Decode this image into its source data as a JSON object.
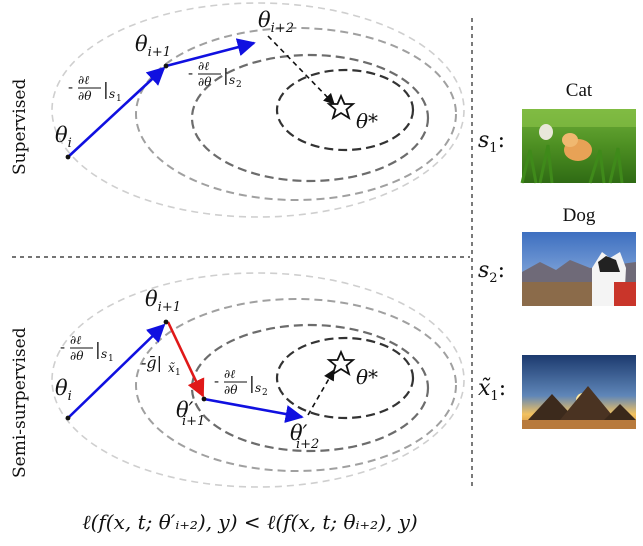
{
  "panels": {
    "supervised": {
      "title": "Supervised",
      "theta_i": "θ",
      "theta_i_sub": "i",
      "theta_i1": "θ",
      "theta_i1_sub": "i+1",
      "theta_i2": "θ",
      "theta_i2_sub": "i+2",
      "theta_star": "θ*",
      "grad_s1_sub": "s",
      "grad_s1_subsub": "1",
      "grad_s2_sub": "s",
      "grad_s2_subsub": "2"
    },
    "semi_supervised": {
      "title": "Semi-surpervised",
      "theta_i": "θ",
      "theta_i_sub": "i",
      "theta_i1": "θ",
      "theta_i1_sub": "i+1",
      "theta_prime_i1": "θ′",
      "theta_prime_i1_sub": "i+1",
      "theta_prime_i2": "θ′",
      "theta_prime_i2_sub": "i+2",
      "theta_star": "θ*",
      "grad_s1_sub": "s",
      "grad_s1_subsub": "1",
      "grad_s2_sub": "s",
      "grad_s2_subsub": "2",
      "g_label": "-ḡ|",
      "g_sub": "x̃",
      "g_subsub": "1"
    }
  },
  "gradient": {
    "minus": "-",
    "numerator": "∂ℓ",
    "denominator": "∂θ",
    "bar": "|"
  },
  "samples": [
    {
      "label": "s",
      "sub": "1",
      "suffix": ":",
      "caption": "Cat"
    },
    {
      "label": "s",
      "sub": "2",
      "suffix": ":",
      "caption": "Dog"
    },
    {
      "label": "x̃",
      "sub": "1",
      "suffix": ":",
      "caption": ""
    }
  ],
  "formula": "ℓ(f(x, t; θ′ᵢ₊₂), y) < ℓ(f(x, t; θᵢ₊₂), y)",
  "colors": {
    "blue_arrow": "#1010e0",
    "red_arrow": "#e01818",
    "ring_outer": "#c8c8c8",
    "ring_mid": "#9a9a9a",
    "ring_inner": "#6a6a6a",
    "ring_core": "#333333"
  }
}
